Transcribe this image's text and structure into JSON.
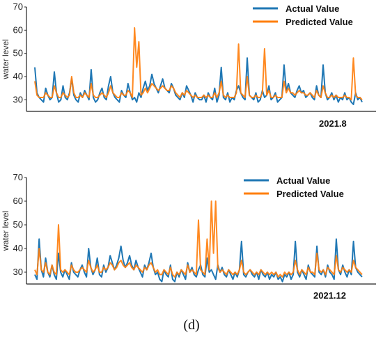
{
  "figure_label": "(d)",
  "colors": {
    "actual": "#1f77b4",
    "predicted": "#ff7f0e"
  },
  "chart_data": [
    {
      "type": "line",
      "title": "",
      "xlabel": "2021.8",
      "ylabel": "water level",
      "ylim": [
        25,
        70
      ],
      "yticks": [
        30,
        40,
        50,
        60,
        70
      ],
      "legend": "top-right",
      "series": [
        {
          "name": "Actual Value",
          "values": [
            44,
            33,
            31,
            30,
            29,
            35,
            32,
            30,
            31,
            42,
            33,
            29,
            30,
            36,
            31,
            30,
            33,
            39,
            32,
            30,
            29,
            33,
            31,
            34,
            32,
            30,
            43,
            31,
            29,
            30,
            33,
            35,
            31,
            30,
            36,
            40,
            33,
            31,
            30,
            29,
            34,
            32,
            31,
            37,
            33,
            30,
            31,
            29,
            33,
            31,
            35,
            38,
            34,
            36,
            41,
            37,
            35,
            33,
            36,
            39,
            35,
            34,
            33,
            37,
            35,
            32,
            31,
            30,
            33,
            31,
            36,
            34,
            32,
            29,
            33,
            31,
            30,
            30,
            32,
            29,
            33,
            31,
            30,
            35,
            29,
            32,
            44,
            31,
            30,
            33,
            29,
            31,
            30,
            34,
            36,
            33,
            31,
            30,
            48,
            32,
            31,
            30,
            33,
            29,
            30,
            34,
            31,
            32,
            36,
            30,
            31,
            33,
            29,
            30,
            31,
            45,
            34,
            37,
            33,
            32,
            31,
            34,
            36,
            33,
            34,
            31,
            32,
            33,
            31,
            30,
            36,
            32,
            31,
            45,
            33,
            30,
            31,
            33,
            30,
            32,
            29,
            31,
            30,
            33,
            30,
            31,
            29,
            28,
            33,
            30,
            31,
            29
          ]
        },
        {
          "name": "Predicted Value",
          "values": [
            38,
            32,
            31,
            31,
            31,
            33,
            32,
            31,
            31,
            36,
            33,
            31,
            31,
            33,
            32,
            31,
            32,
            40,
            33,
            31,
            31,
            32,
            31,
            33,
            32,
            31,
            37,
            32,
            31,
            31,
            32,
            33,
            32,
            31,
            33,
            36,
            33,
            32,
            31,
            31,
            33,
            32,
            32,
            34,
            33,
            31,
            61,
            44,
            55,
            32,
            33,
            35,
            33,
            35,
            37,
            36,
            35,
            34,
            35,
            36,
            35,
            34,
            34,
            36,
            35,
            33,
            32,
            31,
            33,
            32,
            34,
            33,
            32,
            31,
            32,
            31,
            31,
            31,
            32,
            31,
            32,
            31,
            31,
            33,
            31,
            33,
            38,
            32,
            31,
            32,
            31,
            31,
            31,
            33,
            54,
            33,
            32,
            31,
            40,
            32,
            31,
            31,
            32,
            31,
            31,
            33,
            52,
            32,
            34,
            31,
            31,
            32,
            31,
            31,
            31,
            38,
            33,
            35,
            33,
            33,
            32,
            33,
            34,
            33,
            33,
            32,
            32,
            33,
            32,
            31,
            34,
            32,
            31,
            36,
            33,
            31,
            31,
            32,
            31,
            32,
            31,
            31,
            31,
            32,
            31,
            31,
            30,
            48,
            32,
            31,
            31,
            30
          ]
        }
      ]
    },
    {
      "type": "line",
      "title": "",
      "xlabel": "2021.12",
      "ylabel": "water level",
      "ylim": [
        25,
        70
      ],
      "yticks": [
        30,
        40,
        50,
        60,
        70
      ],
      "legend": "top-right",
      "series": [
        {
          "name": "Actual Value",
          "values": [
            29,
            27,
            44,
            31,
            28,
            36,
            30,
            28,
            33,
            29,
            27,
            38,
            30,
            28,
            31,
            29,
            27,
            34,
            30,
            29,
            28,
            31,
            33,
            30,
            28,
            40,
            32,
            29,
            31,
            36,
            29,
            28,
            33,
            30,
            32,
            37,
            34,
            31,
            33,
            36,
            41,
            35,
            32,
            34,
            37,
            33,
            31,
            35,
            32,
            30,
            28,
            33,
            31,
            34,
            38,
            32,
            29,
            30,
            27,
            26,
            31,
            29,
            28,
            33,
            27,
            26,
            30,
            28,
            31,
            29,
            27,
            34,
            30,
            32,
            29,
            28,
            31,
            33,
            29,
            28,
            36,
            30,
            31,
            29,
            27,
            33,
            30,
            32,
            29,
            28,
            31,
            29,
            27,
            30,
            28,
            31,
            43,
            29,
            28,
            30,
            31,
            29,
            28,
            30,
            27,
            31,
            29,
            28,
            30,
            27,
            29,
            28,
            30,
            27,
            28,
            26,
            29,
            28,
            30,
            27,
            29,
            43,
            30,
            28,
            31,
            29,
            27,
            33,
            30,
            29,
            28,
            41,
            30,
            29,
            31,
            28,
            33,
            30,
            29,
            27,
            44,
            31,
            29,
            33,
            30,
            28,
            31,
            29,
            43,
            32,
            30,
            29,
            28
          ]
        },
        {
          "name": "Predicted Value",
          "values": [
            31,
            29,
            40,
            31,
            30,
            34,
            30,
            29,
            33,
            30,
            29,
            50,
            31,
            30,
            31,
            30,
            29,
            33,
            31,
            30,
            30,
            31,
            32,
            31,
            30,
            35,
            32,
            30,
            31,
            33,
            30,
            30,
            32,
            31,
            32,
            34,
            33,
            31,
            32,
            34,
            35,
            33,
            32,
            33,
            34,
            32,
            31,
            33,
            32,
            31,
            30,
            32,
            31,
            33,
            34,
            32,
            30,
            31,
            29,
            29,
            31,
            30,
            29,
            32,
            29,
            28,
            30,
            29,
            31,
            30,
            29,
            33,
            30,
            31,
            30,
            29,
            52,
            31,
            30,
            29,
            44,
            31,
            60,
            38,
            60,
            32,
            30,
            31,
            30,
            29,
            31,
            30,
            29,
            30,
            29,
            31,
            35,
            30,
            29,
            30,
            31,
            30,
            29,
            30,
            29,
            31,
            30,
            29,
            30,
            29,
            30,
            29,
            30,
            28,
            29,
            28,
            30,
            29,
            30,
            29,
            30,
            35,
            31,
            29,
            31,
            30,
            29,
            32,
            30,
            30,
            29,
            38,
            31,
            30,
            31,
            29,
            32,
            31,
            30,
            29,
            37,
            31,
            30,
            32,
            31,
            30,
            31,
            30,
            35,
            32,
            31,
            30,
            29
          ]
        }
      ]
    }
  ]
}
